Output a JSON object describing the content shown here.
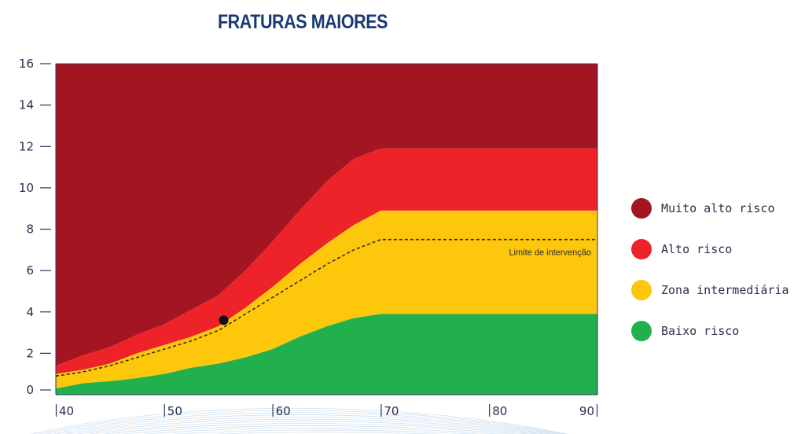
{
  "chart_data": {
    "type": "area",
    "title": "FRATURAS MAIORES",
    "xlabel": "",
    "ylabel": "",
    "xlim": [
      40,
      90
    ],
    "ylim": [
      0,
      16
    ],
    "y_ticks": [
      0,
      2,
      4,
      6,
      8,
      10,
      12,
      14,
      16
    ],
    "x_ticks": [
      40,
      50,
      60,
      70,
      80,
      90
    ],
    "grid": false,
    "legend_placement": "right",
    "x": [
      40,
      42.5,
      45,
      47.5,
      50,
      52.5,
      55,
      57.5,
      60,
      62.5,
      65,
      67.5,
      70,
      72.5,
      75,
      77.5,
      80,
      82.5,
      85,
      87.5,
      90
    ],
    "series": [
      {
        "name": "Baixo risco",
        "color": "#21b04b",
        "upper": [
          0.3,
          0.55,
          0.65,
          0.8,
          1.0,
          1.3,
          1.5,
          1.8,
          2.2,
          2.8,
          3.3,
          3.7,
          3.9,
          3.9,
          3.9,
          3.9,
          3.9,
          3.9,
          3.9,
          3.9,
          3.9
        ]
      },
      {
        "name": "Zona intermediária",
        "color": "#fdc70c",
        "upper": [
          1.0,
          1.2,
          1.5,
          2.0,
          2.4,
          2.8,
          3.3,
          4.2,
          5.2,
          6.3,
          7.3,
          8.2,
          8.9,
          8.9,
          8.9,
          8.9,
          8.9,
          8.9,
          8.9,
          8.9,
          8.9
        ]
      },
      {
        "name": "Alto risco",
        "color": "#ee2229",
        "upper": [
          1.4,
          1.9,
          2.3,
          2.9,
          3.4,
          4.1,
          4.8,
          6.0,
          7.4,
          8.9,
          10.3,
          11.4,
          11.9,
          11.9,
          11.9,
          11.9,
          11.9,
          11.9,
          11.9,
          11.9,
          11.9
        ]
      },
      {
        "name": "Muito alto risco",
        "color": "#a21521",
        "upper": [
          16,
          16,
          16,
          16,
          16,
          16,
          16,
          16,
          16,
          16,
          16,
          16,
          16,
          16,
          16,
          16,
          16,
          16,
          16,
          16,
          16
        ]
      }
    ],
    "threshold_line": {
      "label": "Limite de intervenção",
      "x": [
        40,
        42.5,
        45,
        47.5,
        50,
        52.5,
        55,
        57.5,
        60,
        62.5,
        65,
        67.5,
        70,
        90
      ],
      "y": [
        0.9,
        1.1,
        1.4,
        1.8,
        2.2,
        2.6,
        3.1,
        3.9,
        4.7,
        5.5,
        6.3,
        7.0,
        7.5,
        7.5
      ]
    },
    "point": {
      "x": 55.5,
      "y": 3.6
    }
  },
  "legend": {
    "items": [
      {
        "label": "Muito alto risco",
        "color": "#a21521"
      },
      {
        "label": "Alto risco",
        "color": "#ee2229"
      },
      {
        "label": "Zona intermediária",
        "color": "#fdc70c"
      },
      {
        "label": "Baixo risco",
        "color": "#21b04b"
      }
    ]
  }
}
